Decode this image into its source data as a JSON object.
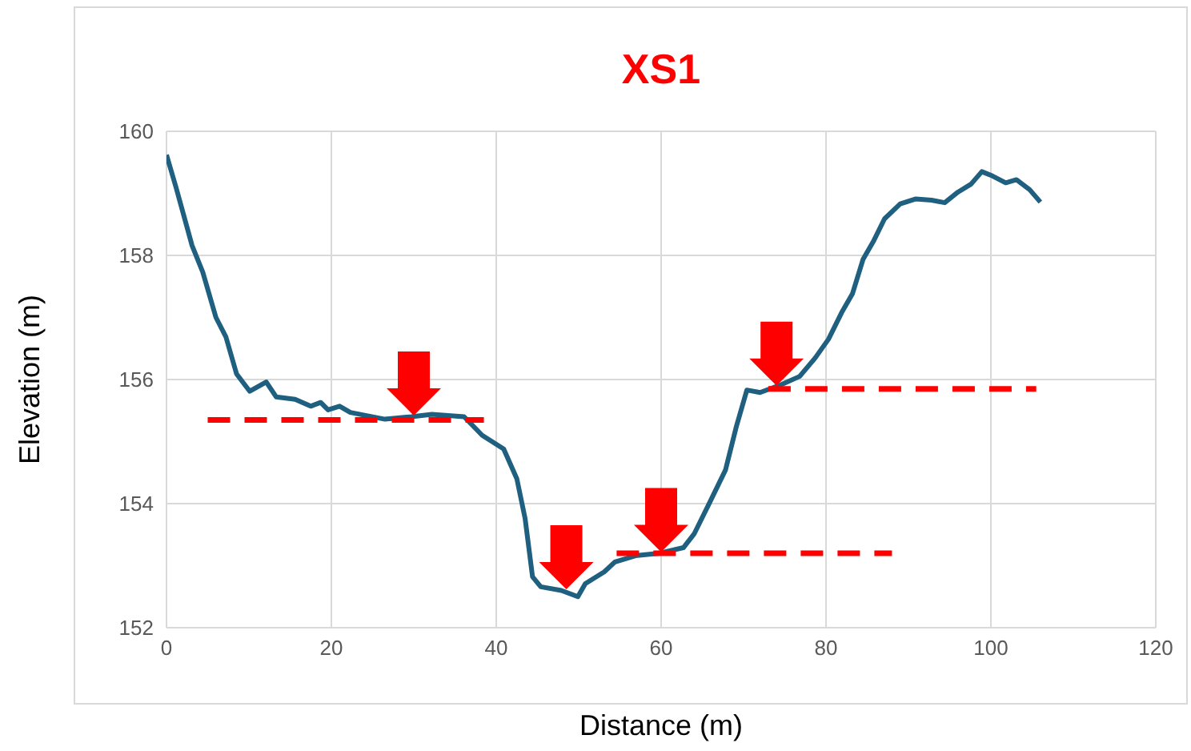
{
  "chart_data": {
    "type": "line",
    "title": "XS1",
    "xlabel": "Distance (m)",
    "ylabel": "Elevation (m)",
    "xlim": [
      0,
      120
    ],
    "xticks": [
      0,
      20,
      40,
      60,
      80,
      100,
      120
    ],
    "ylim": [
      152,
      160
    ],
    "yticks": [
      152,
      154,
      156,
      158,
      160
    ],
    "grid": true,
    "marker": "none",
    "series": [
      {
        "color": "#1f5f7f",
        "line_style": "solid",
        "x": [
          0,
          1.15,
          3.1,
          4.4,
          6.0,
          7.2,
          8.5,
          10.1,
          12.1,
          13.3,
          15.6,
          17.5,
          18.7,
          19.6,
          21.0,
          22.3,
          26.5,
          29.7,
          32.2,
          36.1,
          38.3,
          40.9,
          42.5,
          43.5,
          44.4,
          45.4,
          47.9,
          49.9,
          50.8,
          53.1,
          54.4,
          56.9,
          59.8,
          62.7,
          64.0,
          65.9,
          67.8,
          69.1,
          70.4,
          72.0,
          74.6,
          76.8,
          78.7,
          80.3,
          81.9,
          83.2,
          84.5,
          85.8,
          87.1,
          89.0,
          90.9,
          92.8,
          94.4,
          96.0,
          97.6,
          98.9,
          100.2,
          101.8,
          103.1,
          104.7,
          106.0
        ],
        "values": [
          159.62,
          159.1,
          158.16,
          157.73,
          157.0,
          156.69,
          156.09,
          155.81,
          155.96,
          155.72,
          155.68,
          155.57,
          155.63,
          155.51,
          155.57,
          155.47,
          155.36,
          155.4,
          155.44,
          155.4,
          155.1,
          154.88,
          154.4,
          153.76,
          152.82,
          152.66,
          152.6,
          152.5,
          152.71,
          152.9,
          153.06,
          153.16,
          153.2,
          153.29,
          153.51,
          154.02,
          154.54,
          155.23,
          155.83,
          155.79,
          155.92,
          156.05,
          156.35,
          156.65,
          157.08,
          157.38,
          157.94,
          158.24,
          158.59,
          158.83,
          158.91,
          158.89,
          158.85,
          159.02,
          159.15,
          159.35,
          159.28,
          159.17,
          159.22,
          159.06,
          158.86
        ]
      },
      {
        "color": "#ff0000",
        "line_style": "dashed",
        "x": [
          5,
          38.5
        ],
        "values": [
          155.35,
          155.35
        ]
      },
      {
        "color": "#ff0000",
        "line_style": "dashed",
        "x": [
          54.6,
          88
        ],
        "values": [
          153.2,
          153.2
        ]
      },
      {
        "color": "#ff0000",
        "line_style": "dashed",
        "x": [
          73,
          105.5
        ],
        "values": [
          155.85,
          155.85
        ]
      }
    ]
  }
}
